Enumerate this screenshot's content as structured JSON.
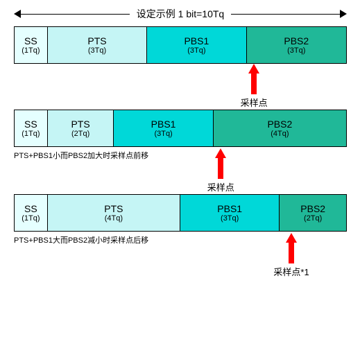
{
  "title": "设定示例 1 bit=10Tq",
  "arrow_color": "#ff0000",
  "colors": {
    "ss": "#e5ffff",
    "pts": "#c5f5f5",
    "pbs1": "#00d8d8",
    "pbs2": "#20b898"
  },
  "bar_total_tq": 10,
  "bars": [
    {
      "segments": [
        {
          "label": "SS",
          "sub": "(1Tq)",
          "tq": 1,
          "color": "ss"
        },
        {
          "label": "PTS",
          "sub": "(3Tq)",
          "tq": 3,
          "color": "pts"
        },
        {
          "label": "PBS1",
          "sub": "(3Tq)",
          "tq": 3,
          "color": "pbs1"
        },
        {
          "label": "PBS2",
          "sub": "(3Tq)",
          "tq": 3,
          "color": "pbs2"
        }
      ],
      "sample_tq": 7,
      "sample_label": "采样点",
      "note": ""
    },
    {
      "segments": [
        {
          "label": "SS",
          "sub": "(1Tq)",
          "tq": 1,
          "color": "ss"
        },
        {
          "label": "PTS",
          "sub": "(2Tq)",
          "tq": 2,
          "color": "pts"
        },
        {
          "label": "PBS1",
          "sub": "(3Tq)",
          "tq": 3,
          "color": "pbs1"
        },
        {
          "label": "PBS2",
          "sub": "(4Tq)",
          "tq": 4,
          "color": "pbs2"
        }
      ],
      "sample_tq": 6,
      "sample_label": "采样点",
      "note": "PTS+PBS1小而PBS2加大时采样点前移"
    },
    {
      "segments": [
        {
          "label": "SS",
          "sub": "(1Tq)",
          "tq": 1,
          "color": "ss"
        },
        {
          "label": "PTS",
          "sub": "(4Tq)",
          "tq": 4,
          "color": "pts"
        },
        {
          "label": "PBS1",
          "sub": "(3Tq)",
          "tq": 3,
          "color": "pbs1"
        },
        {
          "label": "PBS2",
          "sub": "(2Tq)",
          "tq": 2,
          "color": "pbs2"
        }
      ],
      "sample_tq": 8,
      "sample_label": "采样点*1",
      "note": "PTS+PBS1大而PBS2减小时采样点后移"
    }
  ]
}
